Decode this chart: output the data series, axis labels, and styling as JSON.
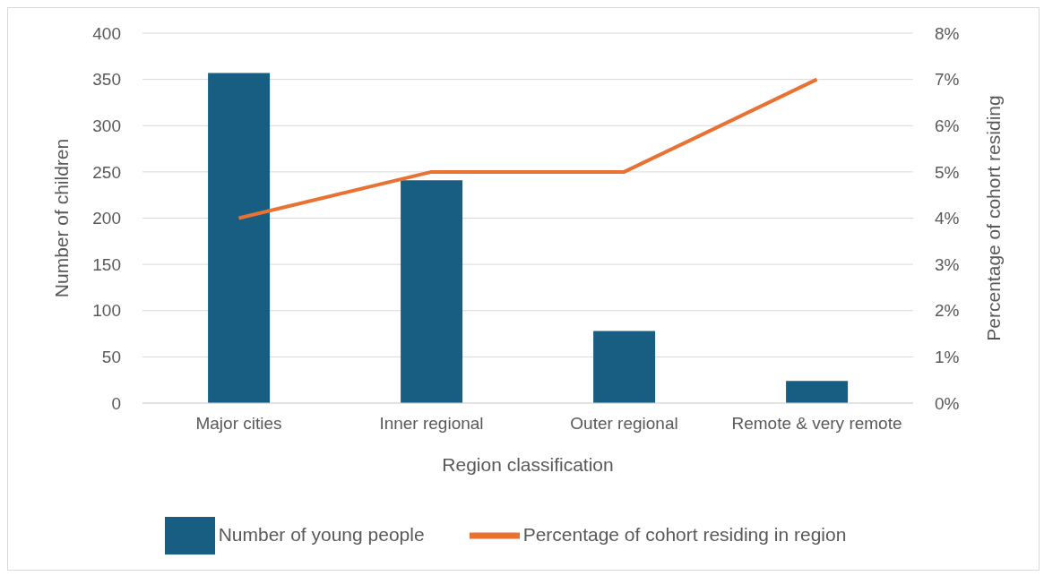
{
  "chart_data": {
    "type": "bar",
    "xlabel": "Region classification",
    "ylabel": "Number of children",
    "y2label": "Percentage of cohort residing",
    "categories": [
      "Major cities",
      "Inner regional",
      "Outer regional",
      "Remote & very remote"
    ],
    "series": [
      {
        "name": "Number of young people",
        "color": "#175e82",
        "values": [
          357,
          241,
          78,
          24
        ]
      },
      {
        "name": "Percentage of cohort residing in region",
        "type": "line",
        "axis": "y2",
        "color": "#e97132",
        "values": [
          4,
          5,
          5,
          7
        ]
      }
    ],
    "ylim": [
      0,
      400
    ],
    "yticks": [
      0,
      50,
      100,
      150,
      200,
      250,
      300,
      350,
      400
    ],
    "y2lim": [
      0,
      8
    ],
    "y2ticks": [
      {
        "value": 0,
        "label": "0%"
      },
      {
        "value": 1,
        "label": "1%"
      },
      {
        "value": 2,
        "label": "2%"
      },
      {
        "value": 3,
        "label": "3%"
      },
      {
        "value": 4,
        "label": "4%"
      },
      {
        "value": 5,
        "label": "5%"
      },
      {
        "value": 6,
        "label": "6%"
      },
      {
        "value": 7,
        "label": "7%"
      },
      {
        "value": 8,
        "label": "8%"
      }
    ],
    "grid": "y",
    "legend": "bottom",
    "marker": "none",
    "line_style": "solid"
  }
}
